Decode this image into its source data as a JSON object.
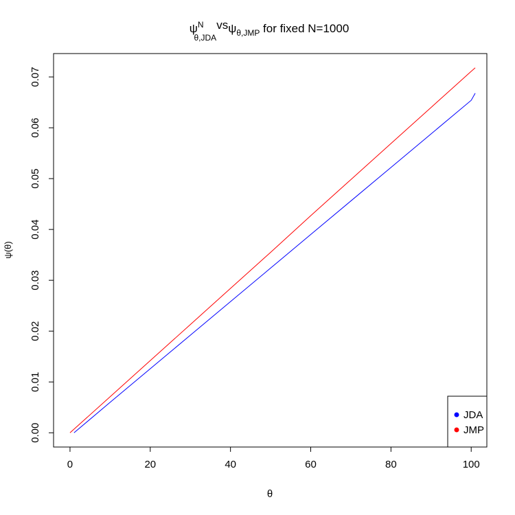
{
  "chart_data": {
    "type": "line",
    "title_parts": [
      "ψ",
      "N",
      "θ,JDA",
      "vs",
      "ψ",
      "θ,JMP",
      " for fixed N=1000"
    ],
    "x_label": "θ",
    "y_label": "ψ(θ)",
    "xlim": [
      -4.1,
      103.9
    ],
    "xticks": [
      0,
      20,
      40,
      60,
      80,
      100
    ],
    "ylim": [
      -0.0028,
      0.0746
    ],
    "yticks": [
      {
        "value": 0,
        "label": "0.00"
      },
      {
        "value": 0.01,
        "label": "0.01"
      },
      {
        "value": 0.02,
        "label": "0.02"
      },
      {
        "value": 0.03,
        "label": "0.03"
      },
      {
        "value": 0.04,
        "label": "0.04"
      },
      {
        "value": 0.05,
        "label": "0.05"
      },
      {
        "value": 0.06,
        "label": "0.06"
      },
      {
        "value": 0.07,
        "label": "0.07"
      }
    ],
    "legend": "bottom-right",
    "series": [
      {
        "name": "JDA",
        "color": "#0000ff",
        "x": [
          1,
          10,
          20,
          30,
          40,
          50,
          60,
          70,
          80,
          90,
          100,
          101
        ],
        "values": [
          0,
          0.006,
          0.0126,
          0.0192,
          0.0258,
          0.0324,
          0.039,
          0.0456,
          0.0522,
          0.0588,
          0.0654,
          0.0668
        ]
      },
      {
        "name": "JMP",
        "color": "#ff0000",
        "x": [
          0,
          10,
          20,
          30,
          40,
          50,
          60,
          70,
          80,
          90,
          100,
          101
        ],
        "values": [
          0,
          0.0071,
          0.0142,
          0.0213,
          0.0284,
          0.0355,
          0.0427,
          0.0498,
          0.0569,
          0.064,
          0.0711,
          0.0718
        ]
      }
    ]
  }
}
